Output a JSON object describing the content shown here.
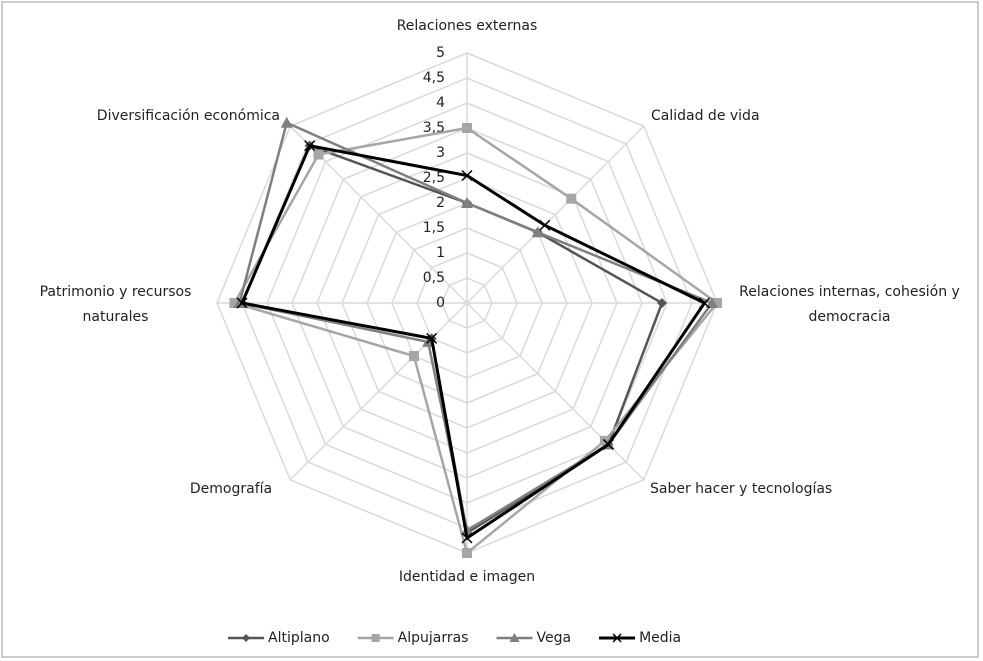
{
  "chart_data": {
    "type": "radar",
    "categories": [
      "Relaciones externas",
      "Calidad de vida",
      "Relaciones internas, cohesión y democracia",
      "Saber hacer y tecnologías",
      "Identidad e imagen",
      "Demografía",
      "Patrimonio y recursos naturales",
      "Diversificación económica"
    ],
    "series": [
      {
        "name": "Altiplano",
        "color": "#555555",
        "marker": "diamond",
        "values": [
          2,
          2,
          3.9,
          4,
          4.6,
          1,
          4.5,
          4.45
        ]
      },
      {
        "name": "Alpujarras",
        "color": "#a6a6a6",
        "marker": "square",
        "values": [
          3.5,
          2.95,
          5,
          3.9,
          5,
          1.5,
          4.65,
          4.2
        ]
      },
      {
        "name": "Vega",
        "color": "#7f7f7f",
        "marker": "triangle",
        "values": [
          2,
          2,
          4.9,
          4,
          4.55,
          1.1,
          4.55,
          5.1
        ]
      },
      {
        "name": "Media",
        "color": "#000000",
        "marker": "x",
        "values": [
          2.55,
          2.2,
          4.75,
          4,
          4.7,
          1,
          4.5,
          4.45
        ]
      }
    ],
    "rlim": [
      0,
      5
    ],
    "rticks": [
      0,
      {
        "value": 0.5,
        "label": "0,5"
      },
      1,
      {
        "value": 1.5,
        "label": "1,5"
      },
      2,
      {
        "value": 2.5,
        "label": "2,5"
      },
      3,
      {
        "value": 3.5,
        "label": "3,5"
      },
      4,
      {
        "value": 4.5,
        "label": "4,5"
      },
      5
    ],
    "grid": true,
    "legend": "bottom"
  }
}
